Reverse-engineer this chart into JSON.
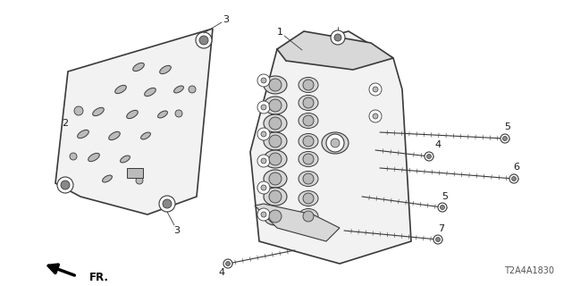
{
  "bg_color": "#ffffff",
  "part_number": "T2A4A1830",
  "fr_label": "FR.",
  "line_color": "#3a3a3a",
  "text_color": "#1a1a1a",
  "gray_fill": "#d8d8d8",
  "light_fill": "#f2f2f2",
  "mid_fill": "#bbbbbb",
  "dark_fill": "#888888"
}
